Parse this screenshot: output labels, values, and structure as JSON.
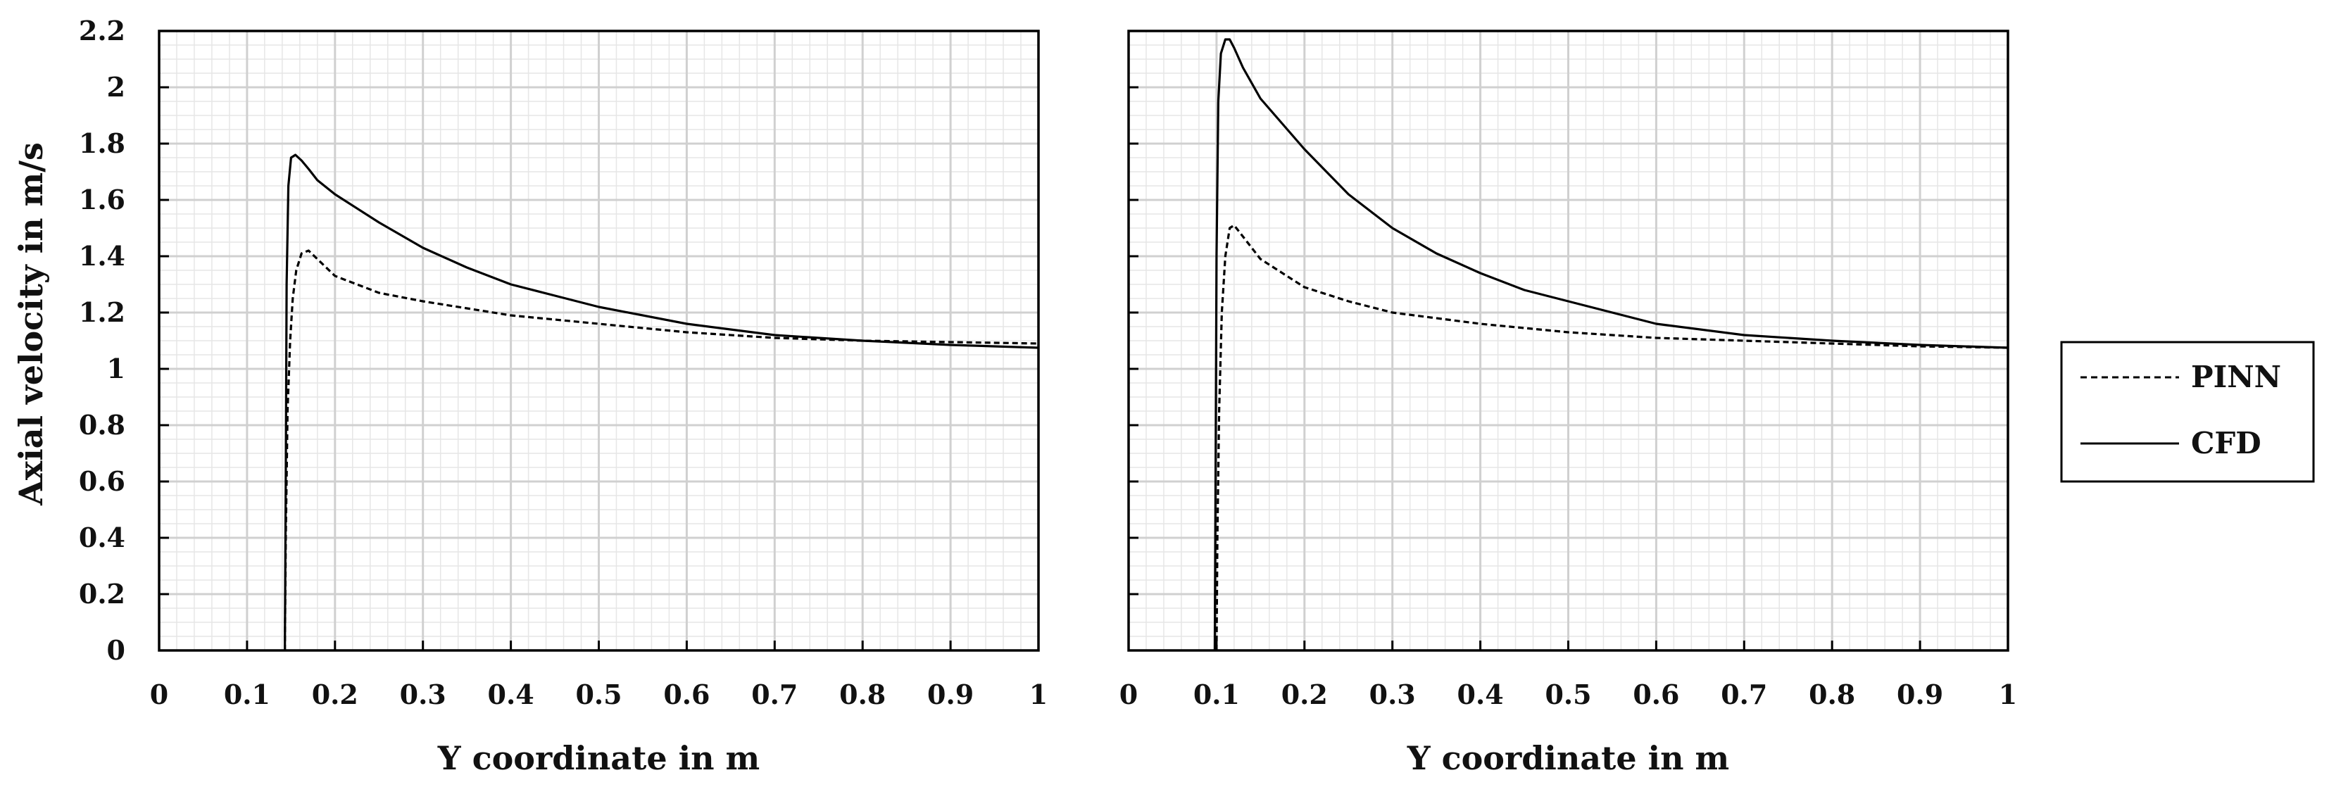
{
  "chart_data": [
    {
      "type": "line",
      "xlabel": "Y coordinate in m",
      "ylabel": "Axial velocity in m/s",
      "xlim": [
        0,
        1
      ],
      "ylim": [
        0,
        2.2
      ],
      "x_ticks": [
        "0",
        "0.1",
        "0.2",
        "0.3",
        "0.4",
        "0.5",
        "0.6",
        "0.7",
        "0.8",
        "0.9",
        "1"
      ],
      "y_ticks": [
        "0",
        "0.2",
        "0.4",
        "0.6",
        "0.8",
        "1",
        "1.2",
        "1.4",
        "1.6",
        "1.8",
        "2",
        "2.2"
      ],
      "grid": true,
      "series": [
        {
          "name": "PINN",
          "style": "dashed",
          "x": [
            0.143,
            0.144,
            0.146,
            0.149,
            0.152,
            0.156,
            0.162,
            0.17,
            0.18,
            0.2,
            0.25,
            0.3,
            0.4,
            0.5,
            0.6,
            0.7,
            0.8,
            0.9,
            1.0
          ],
          "y": [
            0.0,
            0.4,
            0.85,
            1.1,
            1.25,
            1.35,
            1.41,
            1.42,
            1.39,
            1.33,
            1.27,
            1.24,
            1.19,
            1.16,
            1.13,
            1.11,
            1.1,
            1.095,
            1.09
          ]
        },
        {
          "name": "CFD",
          "style": "solid",
          "x": [
            0.143,
            0.144,
            0.145,
            0.147,
            0.15,
            0.155,
            0.162,
            0.17,
            0.18,
            0.2,
            0.25,
            0.3,
            0.35,
            0.4,
            0.45,
            0.5,
            0.6,
            0.7,
            0.8,
            0.9,
            1.0
          ],
          "y": [
            0.0,
            0.6,
            1.3,
            1.65,
            1.75,
            1.76,
            1.74,
            1.71,
            1.67,
            1.62,
            1.52,
            1.43,
            1.36,
            1.3,
            1.26,
            1.22,
            1.16,
            1.12,
            1.1,
            1.085,
            1.075
          ]
        }
      ]
    },
    {
      "type": "line",
      "xlabel": "Y coordinate in m",
      "ylabel": "",
      "xlim": [
        0,
        1
      ],
      "ylim": [
        0,
        2.2
      ],
      "x_ticks": [
        "0",
        "0.1",
        "0.2",
        "0.3",
        "0.4",
        "0.5",
        "0.6",
        "0.7",
        "0.8",
        "0.9",
        "1"
      ],
      "y_ticks": [],
      "grid": true,
      "series": [
        {
          "name": "PINN",
          "style": "dashed",
          "x": [
            0.1,
            0.101,
            0.103,
            0.106,
            0.11,
            0.115,
            0.12,
            0.13,
            0.15,
            0.2,
            0.25,
            0.3,
            0.4,
            0.5,
            0.6,
            0.7,
            0.8,
            0.9,
            1.0
          ],
          "y": [
            0.0,
            0.4,
            0.85,
            1.2,
            1.4,
            1.5,
            1.51,
            1.47,
            1.39,
            1.29,
            1.24,
            1.2,
            1.16,
            1.13,
            1.11,
            1.1,
            1.09,
            1.08,
            1.075
          ]
        },
        {
          "name": "CFD",
          "style": "solid",
          "x": [
            0.098,
            0.099,
            0.1,
            0.102,
            0.105,
            0.11,
            0.115,
            0.12,
            0.13,
            0.15,
            0.2,
            0.25,
            0.3,
            0.35,
            0.4,
            0.45,
            0.5,
            0.6,
            0.7,
            0.8,
            0.9,
            1.0
          ],
          "y": [
            0.0,
            0.7,
            1.4,
            1.95,
            2.12,
            2.17,
            2.17,
            2.14,
            2.07,
            1.96,
            1.78,
            1.62,
            1.5,
            1.41,
            1.34,
            1.28,
            1.24,
            1.16,
            1.12,
            1.1,
            1.085,
            1.075
          ]
        }
      ]
    }
  ],
  "legend": {
    "placement": "right",
    "items": [
      {
        "label": "PINN",
        "style": "dashed"
      },
      {
        "label": "CFD",
        "style": "solid"
      }
    ]
  },
  "colors": {
    "line": "#000000",
    "grid_major": "#d0d0d0",
    "grid_minor": "#e6e6e6",
    "axis": "#000000"
  }
}
